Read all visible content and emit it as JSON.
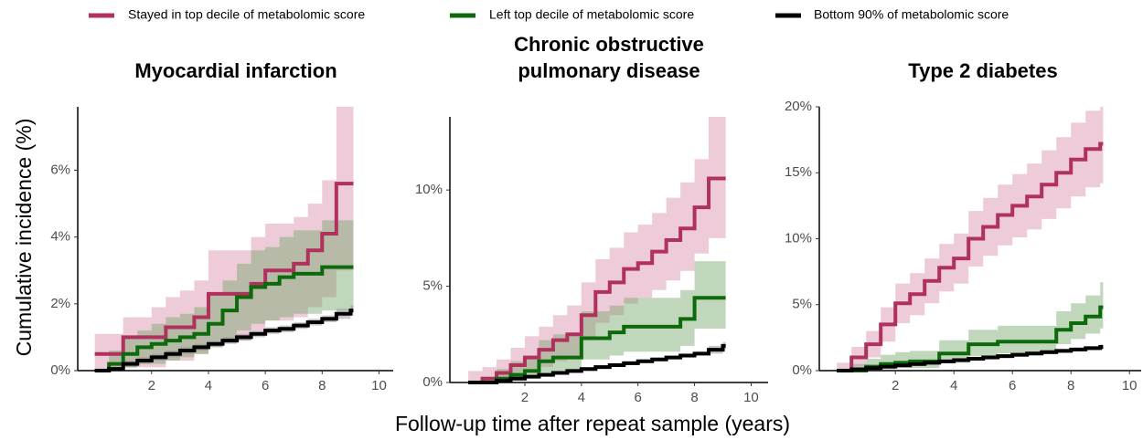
{
  "legend": [
    {
      "name": "Stayed in top decile of metabolomic score",
      "color": "#b0305e",
      "band": "#d98ca9"
    },
    {
      "name": "Left top decile of metabolomic score",
      "color": "#0c6a0c",
      "band": "#73a66b"
    },
    {
      "name": "Bottom 90% of metabolomic score",
      "color": "#000000",
      "band": "#888888"
    }
  ],
  "y_label": "Cumulative incidence (%)",
  "x_label": "Follow-up time after repeat sample (years)",
  "chart_data": [
    {
      "type": "step",
      "title": "Myocardial infarction",
      "x": [
        0,
        0.5,
        1,
        1.5,
        2,
        2.5,
        3,
        3.5,
        4,
        4.5,
        5,
        5.5,
        6,
        6.5,
        7,
        7.5,
        8,
        8.5,
        9,
        9.1
      ],
      "xlim": [
        -0.6,
        10.5
      ],
      "xticks": [
        2,
        4,
        6,
        8,
        10
      ],
      "ylim": [
        0,
        7.9
      ],
      "yticks": [
        {
          "value": 0,
          "label": "0%"
        },
        {
          "value": 2,
          "label": "2%"
        },
        {
          "value": 4,
          "label": "4%"
        },
        {
          "value": 6,
          "label": "6%"
        }
      ],
      "series": [
        {
          "values": [
            0.5,
            0.5,
            1.0,
            1.0,
            1.0,
            1.3,
            1.3,
            1.6,
            2.3,
            2.3,
            2.3,
            2.6,
            3.0,
            3.0,
            3.2,
            3.6,
            4.1,
            5.6,
            5.6,
            5.6
          ],
          "lower": [
            0,
            0,
            0.1,
            0.1,
            0.1,
            0.3,
            0.3,
            0.5,
            0.9,
            0.9,
            0.9,
            1.2,
            1.5,
            1.5,
            1.6,
            1.9,
            2.2,
            3.0,
            3.0,
            3.0
          ],
          "upper": [
            1.1,
            1.1,
            1.6,
            1.6,
            1.9,
            2.2,
            2.4,
            2.7,
            3.6,
            3.6,
            3.6,
            4.0,
            4.4,
            4.4,
            4.6,
            5.0,
            5.7,
            7.9,
            7.9,
            7.9
          ]
        },
        {
          "values": [
            0,
            0.2,
            0.5,
            0.7,
            0.8,
            0.9,
            1.0,
            1.1,
            1.4,
            1.8,
            2.2,
            2.5,
            2.6,
            2.8,
            2.9,
            2.9,
            3.1,
            3.1,
            3.1,
            3.1
          ],
          "lower": [
            0,
            0,
            0.1,
            0.2,
            0.2,
            0.3,
            0.4,
            0.5,
            0.7,
            0.9,
            1.2,
            1.4,
            1.5,
            1.6,
            1.7,
            1.7,
            1.8,
            1.8,
            1.8,
            1.8
          ],
          "upper": [
            0,
            0.6,
            1.0,
            1.2,
            1.4,
            1.6,
            1.7,
            1.9,
            2.3,
            2.7,
            3.2,
            3.6,
            3.7,
            4.0,
            4.2,
            4.2,
            4.5,
            4.5,
            4.5,
            4.5
          ]
        },
        {
          "values": [
            0,
            0.05,
            0.2,
            0.3,
            0.4,
            0.5,
            0.6,
            0.7,
            0.8,
            0.9,
            1.0,
            1.1,
            1.2,
            1.25,
            1.35,
            1.45,
            1.55,
            1.7,
            1.8,
            1.8
          ],
          "lower": [
            0,
            0,
            0.1,
            0.2,
            0.3,
            0.4,
            0.5,
            0.6,
            0.7,
            0.8,
            0.9,
            1.0,
            1.1,
            1.15,
            1.25,
            1.35,
            1.45,
            1.55,
            1.65,
            1.65
          ],
          "upper": [
            0,
            0.1,
            0.3,
            0.4,
            0.5,
            0.6,
            0.7,
            0.8,
            0.9,
            1.0,
            1.1,
            1.2,
            1.3,
            1.35,
            1.45,
            1.55,
            1.65,
            1.85,
            1.95,
            1.95
          ]
        }
      ]
    },
    {
      "type": "step",
      "title": "Chronic obstructive pulmonary disease",
      "x": [
        0,
        0.5,
        1,
        1.5,
        2,
        2.5,
        3,
        3.5,
        4,
        4.5,
        5,
        5.5,
        6,
        6.5,
        7,
        7.5,
        8,
        8.5,
        9,
        9.1
      ],
      "xlim": [
        -0.65,
        10.6
      ],
      "xticks": [
        2,
        4,
        6,
        8,
        10
      ],
      "ylim": [
        0,
        13.8
      ],
      "yticks": [
        {
          "value": 0,
          "label": "0%"
        },
        {
          "value": 5,
          "label": "5%"
        },
        {
          "value": 10,
          "label": "10%"
        }
      ],
      "series": [
        {
          "values": [
            0,
            0.2,
            0.5,
            0.9,
            1.3,
            1.7,
            2.2,
            2.5,
            3.5,
            4.7,
            5.2,
            5.9,
            6.2,
            6.8,
            7.4,
            8.0,
            9.1,
            10.6,
            10.6,
            10.6
          ],
          "lower": [
            0,
            0,
            0.1,
            0.3,
            0.5,
            0.8,
            1.1,
            1.4,
            2.2,
            3.1,
            3.5,
            4.1,
            4.4,
            4.8,
            5.3,
            5.8,
            6.7,
            7.5,
            7.5,
            7.5
          ],
          "upper": [
            0.6,
            0.8,
            1.2,
            1.8,
            2.4,
            2.9,
            3.5,
            4.0,
            5.2,
            6.4,
            7.0,
            7.8,
            8.2,
            8.8,
            9.6,
            10.4,
            11.6,
            13.8,
            13.8,
            13.8
          ]
        },
        {
          "values": [
            0,
            0,
            0.2,
            0.4,
            0.6,
            1.1,
            1.3,
            1.3,
            2.3,
            2.3,
            2.6,
            2.9,
            2.9,
            2.9,
            2.9,
            3.3,
            4.4,
            4.4,
            4.4,
            4.4
          ],
          "lower": [
            0,
            0,
            0,
            0.1,
            0.2,
            0.4,
            0.5,
            0.5,
            1.2,
            1.2,
            1.4,
            1.6,
            1.6,
            1.6,
            1.6,
            1.9,
            2.8,
            2.8,
            2.8,
            2.8
          ],
          "upper": [
            0,
            0.3,
            0.7,
            1.1,
            1.4,
            2.2,
            2.5,
            2.5,
            3.7,
            3.7,
            4.0,
            4.4,
            4.4,
            4.4,
            4.4,
            4.8,
            6.3,
            6.3,
            6.3,
            6.3
          ]
        },
        {
          "values": [
            0,
            0,
            0.1,
            0.2,
            0.3,
            0.4,
            0.5,
            0.6,
            0.7,
            0.8,
            0.9,
            1.0,
            1.1,
            1.2,
            1.3,
            1.4,
            1.5,
            1.7,
            1.9,
            1.9
          ],
          "lower": [
            0,
            0,
            0.05,
            0.15,
            0.25,
            0.35,
            0.45,
            0.5,
            0.6,
            0.7,
            0.8,
            0.9,
            1.0,
            1.1,
            1.2,
            1.3,
            1.4,
            1.5,
            1.7,
            1.7
          ],
          "upper": [
            0,
            0.05,
            0.15,
            0.25,
            0.35,
            0.45,
            0.55,
            0.7,
            0.8,
            0.9,
            1.0,
            1.1,
            1.2,
            1.3,
            1.4,
            1.5,
            1.6,
            1.9,
            2.1,
            2.1
          ]
        }
      ]
    },
    {
      "type": "step",
      "title": "Type 2 diabetes",
      "x": [
        0,
        0.5,
        1,
        1.5,
        2,
        2.5,
        3,
        3.5,
        4,
        4.5,
        5,
        5.5,
        6,
        6.5,
        7,
        7.5,
        8,
        8.5,
        9,
        9.1
      ],
      "xlim": [
        -0.6,
        10.4
      ],
      "xticks": [
        2,
        4,
        6,
        8,
        10
      ],
      "ylim": [
        0,
        20
      ],
      "yticks": [
        {
          "value": 0,
          "label": "0%"
        },
        {
          "value": 5,
          "label": "5%"
        },
        {
          "value": 10,
          "label": "10%"
        },
        {
          "value": 15,
          "label": "15%"
        },
        {
          "value": 20,
          "label": "20%"
        }
      ],
      "series": [
        {
          "values": [
            0,
            1.0,
            2.0,
            3.5,
            5.1,
            5.8,
            6.8,
            7.8,
            8.5,
            10.0,
            10.9,
            11.8,
            12.5,
            13.2,
            14.1,
            15.0,
            16.0,
            16.8,
            17.2,
            17.2
          ],
          "lower": [
            0,
            0.3,
            1.0,
            2.2,
            3.6,
            4.2,
            5.1,
            6.0,
            6.6,
            7.9,
            8.7,
            9.5,
            10.1,
            10.7,
            11.5,
            12.3,
            13.2,
            13.9,
            14.2,
            14.2
          ],
          "upper": [
            0.6,
            1.8,
            3.0,
            4.8,
            6.6,
            7.4,
            8.5,
            9.6,
            10.4,
            12.1,
            13.1,
            14.1,
            14.9,
            15.7,
            16.7,
            17.7,
            18.8,
            19.7,
            20.0,
            20.0
          ]
        },
        {
          "values": [
            0,
            0,
            0.3,
            0.5,
            0.6,
            0.7,
            0.7,
            1.3,
            1.3,
            2.0,
            2.0,
            2.2,
            2.2,
            2.2,
            2.2,
            3.1,
            3.6,
            4.1,
            4.8,
            4.8
          ],
          "lower": [
            0,
            0,
            0,
            0.1,
            0.2,
            0.2,
            0.2,
            0.6,
            0.6,
            1.1,
            1.1,
            1.3,
            1.3,
            1.3,
            1.3,
            2.0,
            2.4,
            2.8,
            3.2,
            3.2
          ],
          "upper": [
            0,
            0.5,
            0.9,
            1.2,
            1.4,
            1.5,
            1.5,
            2.3,
            2.3,
            3.1,
            3.1,
            3.4,
            3.4,
            3.4,
            3.4,
            4.5,
            5.1,
            5.7,
            6.7,
            6.7
          ]
        },
        {
          "values": [
            0,
            0.1,
            0.2,
            0.3,
            0.4,
            0.5,
            0.6,
            0.7,
            0.8,
            0.9,
            1.0,
            1.1,
            1.2,
            1.3,
            1.4,
            1.5,
            1.6,
            1.7,
            1.8,
            1.8
          ],
          "lower": [
            0,
            0,
            0.05,
            0.15,
            0.25,
            0.35,
            0.45,
            0.55,
            0.65,
            0.75,
            0.85,
            0.95,
            1.05,
            1.15,
            1.25,
            1.35,
            1.45,
            1.55,
            1.6,
            1.6
          ],
          "upper": [
            0,
            0.2,
            0.35,
            0.45,
            0.55,
            0.65,
            0.75,
            0.85,
            0.95,
            1.05,
            1.15,
            1.25,
            1.35,
            1.45,
            1.55,
            1.65,
            1.75,
            1.85,
            2.0,
            2.0
          ]
        }
      ]
    }
  ]
}
